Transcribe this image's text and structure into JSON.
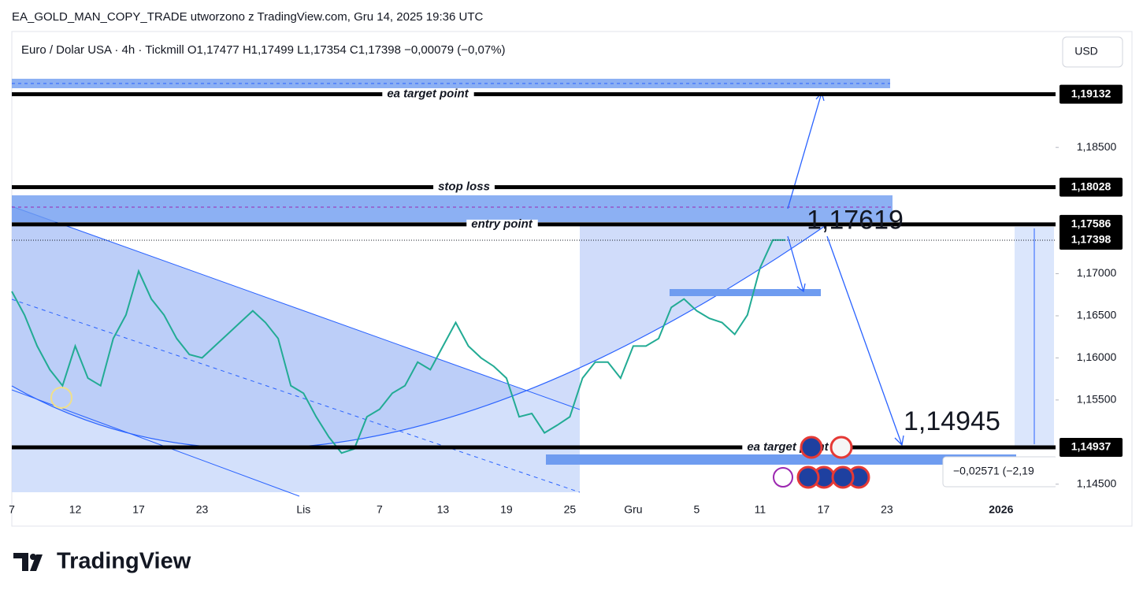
{
  "header": "EA_GOLD_MAN_COPY_TRADE utworzono z TradingView.com, Gru 14, 2025 19:36 UTC",
  "brand": "TradingView",
  "chart_data": {
    "type": "line",
    "title": "Euro / Dolar USA · 4h · Tickmill  O1,17477  H1,17499  L1,17354  C1,17398  −0,00079 (−0,07%)",
    "currency": "USD",
    "categories": [
      "7",
      null,
      null,
      null,
      null,
      "12",
      null,
      null,
      null,
      null,
      "17",
      null,
      null,
      null,
      null,
      "23",
      null,
      null,
      null,
      null,
      null,
      null,
      null,
      "Lis",
      null,
      null,
      null,
      null,
      null,
      "7",
      null,
      null,
      null,
      null,
      "13",
      null,
      null,
      null,
      null,
      "19",
      null,
      null,
      null,
      null,
      "25",
      null,
      null,
      null,
      null,
      "Gru",
      null,
      null,
      null,
      null,
      "5",
      null,
      null,
      null,
      null,
      "11",
      null,
      null,
      null,
      null,
      "17",
      null,
      null,
      null,
      null,
      "23",
      null,
      null,
      null,
      null,
      null,
      null,
      null,
      null,
      "2026",
      null,
      null,
      null
    ],
    "series": [
      {
        "name": "EURUSD",
        "color": "#22ab94",
        "values": [
          1.1679,
          1.1651,
          1.1614,
          1.1586,
          1.1567,
          1.1614,
          1.1576,
          1.1567,
          1.1623,
          1.1651,
          1.1703,
          1.167,
          1.1651,
          1.1623,
          1.1604,
          1.16,
          1.1614,
          1.1628,
          1.1642,
          1.1656,
          1.1642,
          1.1623,
          1.1567,
          1.1558,
          1.153,
          1.1506,
          1.1487,
          1.1492,
          1.153,
          1.1539,
          1.1558,
          1.1567,
          1.1595,
          1.1586,
          1.1614,
          1.1642,
          1.1614,
          1.16,
          1.159,
          1.1576,
          1.153,
          1.1534,
          1.1511,
          1.152,
          1.153,
          1.1576,
          1.1595,
          1.1595,
          1.1576,
          1.1614,
          1.1614,
          1.1623,
          1.166,
          1.167,
          1.1656,
          1.1647,
          1.1642,
          1.1628,
          1.1651,
          1.1707,
          1.174,
          1.174,
          null,
          null,
          null,
          null,
          null,
          null,
          null,
          null,
          null,
          null,
          null,
          null,
          null,
          null,
          null,
          null,
          null,
          null,
          null,
          null
        ]
      }
    ],
    "ylim": [
      1.1403,
      1.1983
    ],
    "yticks": [
      {
        "value": 1.145,
        "label": "1,14500"
      },
      {
        "value": 1.155,
        "label": "1,15500"
      },
      {
        "value": 1.16,
        "label": "1,16000"
      },
      {
        "value": 1.165,
        "label": "1,16500"
      },
      {
        "value": 1.17,
        "label": "1,17000"
      },
      {
        "value": 1.185,
        "label": "1,18500"
      }
    ],
    "levels": [
      {
        "value": 1.19132,
        "label": "1,19132",
        "name": "ea target point"
      },
      {
        "value": 1.18028,
        "label": "1,18028",
        "name": "stop loss"
      },
      {
        "value": 1.17586,
        "label": "1,17586",
        "name": "entry point"
      },
      {
        "value": 1.17398,
        "label": "1,17398"
      },
      {
        "value": 1.14937,
        "label": "1,14937",
        "name": "ea target point"
      }
    ],
    "annotations": [
      {
        "value": 1.17619,
        "label": "1,17619"
      },
      {
        "value": 1.14945,
        "label": "1,14945"
      }
    ],
    "measure": "−0,02571 (−2,19"
  }
}
